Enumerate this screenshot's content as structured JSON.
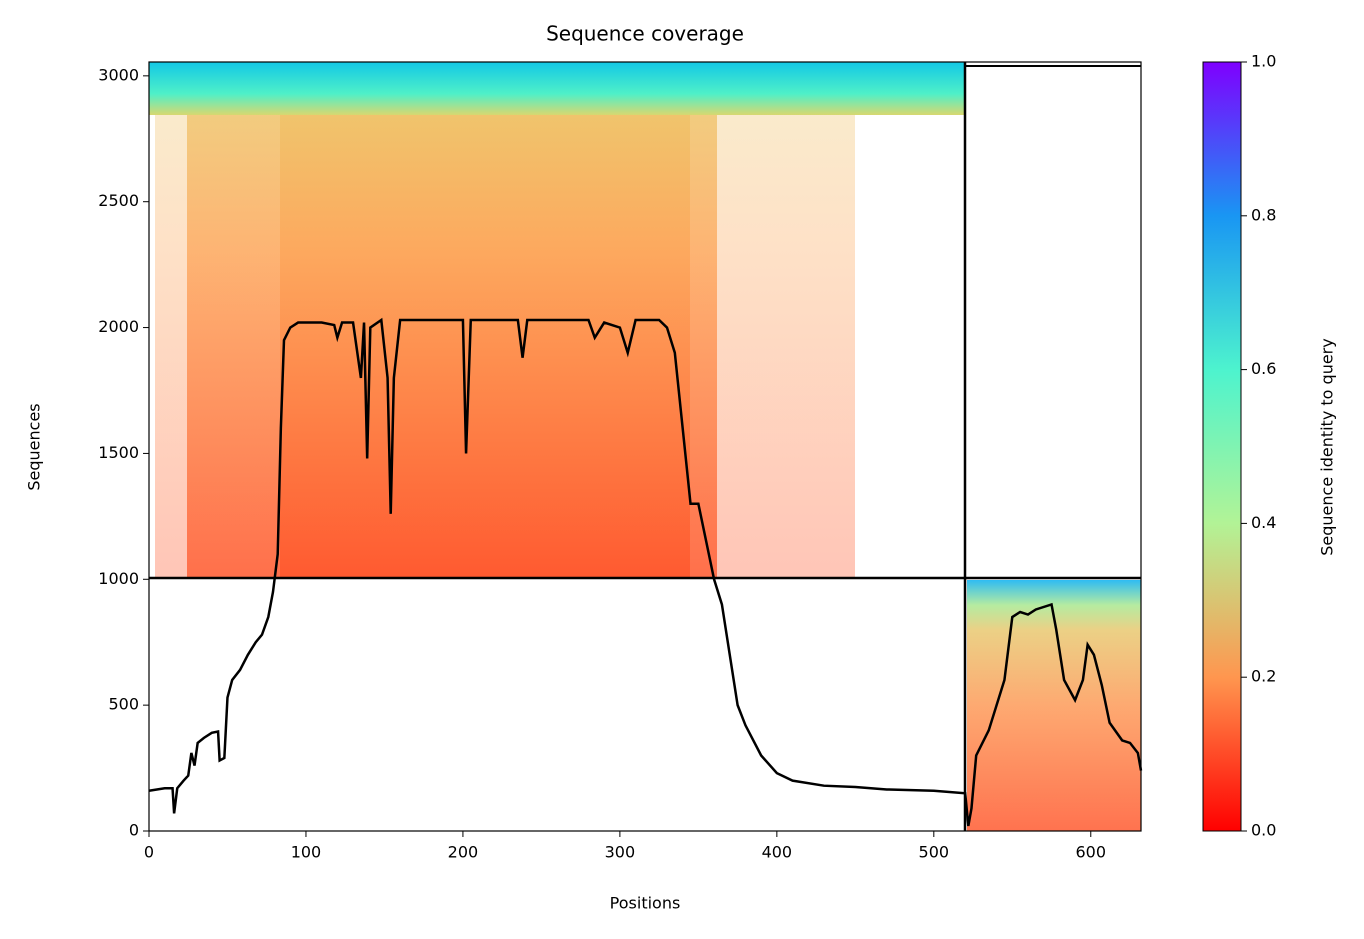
{
  "chart_data": {
    "type": "line",
    "title": "Sequence coverage",
    "x_label": "Positions",
    "y_label": "Sequences",
    "colorbar_label": "Sequence identity to query",
    "color": "#000000",
    "xlim": [
      0,
      632
    ],
    "ylim": [
      0,
      3055
    ],
    "xticks": [
      0,
      100,
      200,
      300,
      400,
      500,
      600
    ],
    "yticks": [
      0,
      500,
      1000,
      1500,
      2000,
      2500,
      3000
    ],
    "colorbar_lim": [
      0,
      1
    ],
    "colorbar_ticks": [
      {
        "value": 0,
        "label": "0.0"
      },
      {
        "value": 0.2,
        "label": "0.2"
      },
      {
        "value": 0.4,
        "label": "0.4"
      },
      {
        "value": 0.6,
        "label": "0.6"
      },
      {
        "value": 0.8,
        "label": "0.8"
      },
      {
        "value": 1,
        "label": "1.0"
      }
    ],
    "x": [
      0,
      10,
      15,
      16,
      18,
      22,
      25,
      27,
      29,
      31,
      35,
      40,
      44,
      45,
      48,
      50,
      53,
      58,
      63,
      68,
      72,
      76,
      79,
      82,
      84,
      86,
      90,
      95,
      110,
      118,
      120,
      123,
      130,
      135,
      137,
      139,
      141,
      148,
      152,
      154,
      156,
      160,
      200,
      202,
      205,
      235,
      238,
      241,
      280,
      284,
      290,
      300,
      305,
      310,
      325,
      330,
      335,
      340,
      345,
      350,
      355,
      360,
      365,
      370,
      375,
      380,
      390,
      400,
      410,
      430,
      450,
      470,
      500,
      520,
      522,
      524,
      527,
      535,
      545,
      550,
      555,
      560,
      565,
      575,
      578,
      583,
      590,
      595,
      598,
      602,
      607,
      612,
      620,
      625,
      630,
      632
    ],
    "values": [
      160,
      170,
      170,
      70,
      170,
      200,
      220,
      310,
      260,
      350,
      370,
      390,
      395,
      280,
      290,
      530,
      600,
      640,
      700,
      750,
      780,
      850,
      950,
      1100,
      1600,
      1950,
      2000,
      2020,
      2020,
      2010,
      1960,
      2020,
      2020,
      1800,
      2020,
      1480,
      2000,
      2030,
      1800,
      1260,
      1800,
      2030,
      2030,
      1500,
      2030,
      2030,
      1880,
      2030,
      2030,
      1960,
      2020,
      2000,
      1900,
      2030,
      2030,
      2000,
      1900,
      1600,
      1300,
      1300,
      1150,
      1000,
      900,
      700,
      500,
      420,
      300,
      230,
      200,
      180,
      175,
      165,
      160,
      150,
      20,
      90,
      300,
      400,
      600,
      850,
      870,
      860,
      880,
      900,
      800,
      600,
      520,
      600,
      740,
      700,
      580,
      430,
      360,
      350,
      310,
      240
    ]
  }
}
